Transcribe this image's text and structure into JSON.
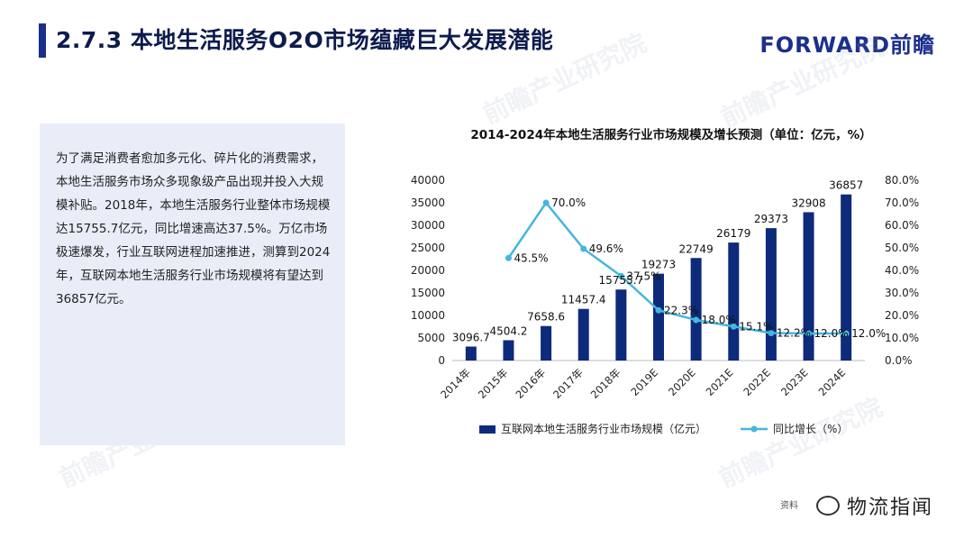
{
  "header": {
    "title": "2.7.3 本地生活服务O2O市场蕴藏巨大发展潜能",
    "logo": "FORWARD前瞻",
    "accent_color": "#1b2f8c"
  },
  "panel": {
    "text": "为了满足消费者愈加多元化、碎片化的消费需求，本地生活服务市场众多现象级产品出现并投入大规模补贴。2018年，本地生活服务行业整体市场规模达15755.7亿元，同比增速高达37.5%。万亿市场极速爆发，行业互联网进程加速推进，测算到2024年，互联网本地生活服务行业市场规模将有望达到36857亿元。"
  },
  "watermark": "前瞻产业研究院",
  "footer": {
    "source": "资料",
    "badge": "物流指闻",
    "badge_icon": "wechat-icon"
  },
  "chart_data": {
    "type": "bar",
    "title": "2014-2024年本地生活服务行业市场规模及增长预测（单位：亿元，%）",
    "categories": [
      "2014年",
      "2015年",
      "2016年",
      "2017年",
      "2018年",
      "2019E",
      "2020E",
      "2021E",
      "2022E",
      "2023E",
      "2024E"
    ],
    "series": [
      {
        "name": "互联网本地生活服务行业市场规模（亿元）",
        "type": "bar",
        "axis": "left",
        "color": "#0e2a7a",
        "values": [
          3096.7,
          4504.2,
          7658.6,
          11457.4,
          15755.7,
          19273,
          22749,
          26179,
          29373,
          32908,
          36857
        ],
        "labels": [
          "3096.7",
          "4504.2",
          "7658.6",
          "11457.4",
          "15755.7",
          "19273",
          "22749",
          "26179",
          "29373",
          "32908",
          "36857"
        ]
      },
      {
        "name": "同比增长（%）",
        "type": "line",
        "axis": "right",
        "color": "#45b6df",
        "values": [
          null,
          45.5,
          70.0,
          49.6,
          37.5,
          22.3,
          18.0,
          15.1,
          12.2,
          12.0,
          12.0
        ],
        "labels": [
          "",
          "45.5%",
          "70.0%",
          "49.6%",
          "37.5%",
          "22.3%",
          "18.0%",
          "15.1%",
          "12.2%",
          "12.0%",
          "12.0%"
        ]
      }
    ],
    "left_axis": {
      "min": 0,
      "max": 40000,
      "ticks": [
        "0",
        "5000",
        "10000",
        "15000",
        "20000",
        "25000",
        "30000",
        "35000",
        "40000"
      ]
    },
    "right_axis": {
      "min": 0,
      "max": 80,
      "ticks": [
        "0.0%",
        "10.0%",
        "20.0%",
        "30.0%",
        "40.0%",
        "50.0%",
        "60.0%",
        "70.0%",
        "80.0%"
      ]
    },
    "grid": false,
    "legend": "bottom"
  }
}
